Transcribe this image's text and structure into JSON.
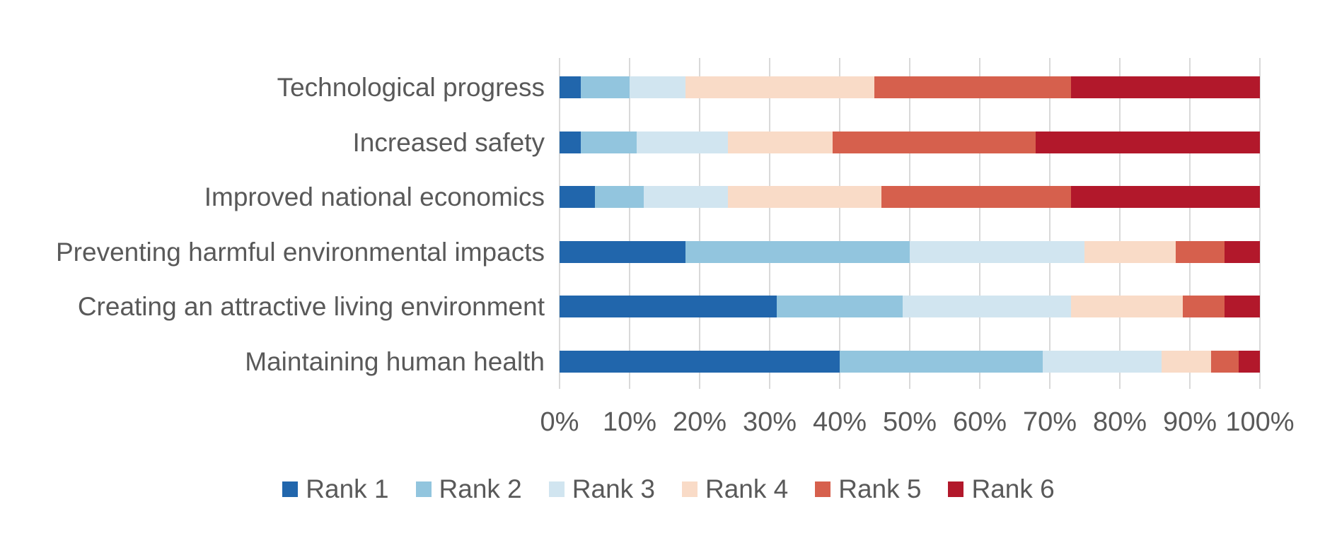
{
  "chart_data": {
    "type": "bar",
    "orientation": "horizontal",
    "stacked": true,
    "units": "percent",
    "title": "",
    "xlabel": "",
    "ylabel": "",
    "xlim": [
      0,
      100
    ],
    "x_tick_labels": [
      "0%",
      "10%",
      "20%",
      "30%",
      "40%",
      "50%",
      "60%",
      "70%",
      "80%",
      "90%",
      "100%"
    ],
    "grid": "vertical",
    "legend_position": "bottom",
    "categories": [
      "Technological progress",
      "Increased safety",
      "Improved national economics",
      "Preventing harmful environmental impacts",
      "Creating an attractive living environment",
      "Maintaining human health"
    ],
    "series": [
      {
        "name": "Rank 1",
        "color": "#2166ac",
        "values": [
          3,
          3,
          5,
          18,
          31,
          40
        ]
      },
      {
        "name": "Rank 2",
        "color": "#92c5de",
        "values": [
          7,
          8,
          7,
          32,
          18,
          29
        ]
      },
      {
        "name": "Rank 3",
        "color": "#d1e5f0",
        "values": [
          8,
          13,
          12,
          25,
          24,
          17
        ]
      },
      {
        "name": "Rank 4",
        "color": "#f9dbc7",
        "values": [
          27,
          15,
          22,
          13,
          16,
          7
        ]
      },
      {
        "name": "Rank 5",
        "color": "#d6604d",
        "values": [
          28,
          29,
          27,
          7,
          6,
          4
        ]
      },
      {
        "name": "Rank 6",
        "color": "#b2182b",
        "values": [
          27,
          32,
          27,
          5,
          5,
          3
        ]
      }
    ],
    "colors": {
      "grid": "#d9d9d9",
      "text": "#595959",
      "background": "#ffffff"
    }
  }
}
